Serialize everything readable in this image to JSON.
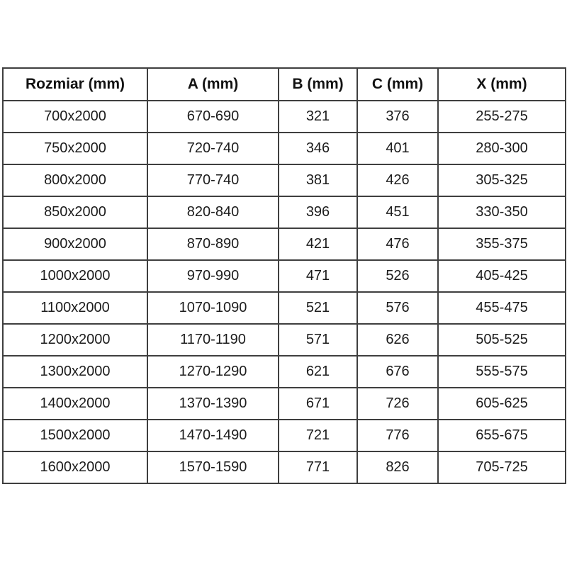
{
  "chart_data": {
    "type": "table",
    "title": "",
    "columns": [
      "Rozmiar (mm)",
      "A (mm)",
      "B (mm)",
      "C (mm)",
      "X (mm)"
    ],
    "rows": [
      [
        "700x2000",
        "670-690",
        "321",
        "376",
        "255-275"
      ],
      [
        "750x2000",
        "720-740",
        "346",
        "401",
        "280-300"
      ],
      [
        "800x2000",
        "770-740",
        "381",
        "426",
        "305-325"
      ],
      [
        "850x2000",
        "820-840",
        "396",
        "451",
        "330-350"
      ],
      [
        "900x2000",
        "870-890",
        "421",
        "476",
        "355-375"
      ],
      [
        "1000x2000",
        "970-990",
        "471",
        "526",
        "405-425"
      ],
      [
        "1100x2000",
        "1070-1090",
        "521",
        "576",
        "455-475"
      ],
      [
        "1200x2000",
        "1170-1190",
        "571",
        "626",
        "505-525"
      ],
      [
        "1300x2000",
        "1270-1290",
        "621",
        "676",
        "555-575"
      ],
      [
        "1400x2000",
        "1370-1390",
        "671",
        "726",
        "605-625"
      ],
      [
        "1500x2000",
        "1470-1490",
        "721",
        "776",
        "655-675"
      ],
      [
        "1600x2000",
        "1570-1590",
        "771",
        "826",
        "705-725"
      ]
    ],
    "layout": {
      "grid": true,
      "border_color": "#3f3f3f",
      "header_bold": true,
      "text_align": "center",
      "background": "#ffffff"
    }
  }
}
